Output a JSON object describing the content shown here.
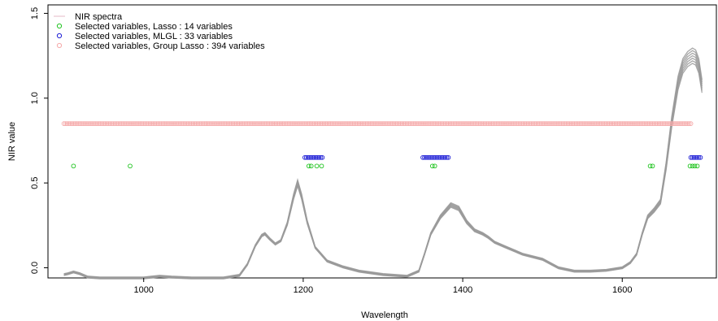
{
  "chart_data": {
    "type": "scatter",
    "title": "",
    "xlabel": "Wavelength",
    "ylabel": "NIR value",
    "xlim": [
      880,
      1718
    ],
    "ylim": [
      -0.06,
      1.55
    ],
    "x_ticks": [
      1000,
      1200,
      1400,
      1600
    ],
    "x_tick_labels": [
      "1000",
      "1200",
      "1400",
      "1600"
    ],
    "y_ticks": [
      0.0,
      0.5,
      1.0,
      1.5
    ],
    "y_tick_labels": [
      "0.0",
      "0.5",
      "1.0",
      "1.5"
    ],
    "grid": false,
    "legend_position": "top-left",
    "legend": [
      {
        "label": "NIR spectra",
        "kind": "line",
        "color": "#e8c4d0"
      },
      {
        "label": "Selected variables, Lasso : 14 variables",
        "kind": "point",
        "color": "#22c422"
      },
      {
        "label": "Selected variables, MLGL : 33 variables",
        "kind": "point",
        "color": "#1f1fd6"
      },
      {
        "label": "Selected variables, Group Lasso : 394 variables",
        "kind": "point",
        "color": "#f5a9a9"
      }
    ],
    "spectra": {
      "name": "NIR spectra",
      "color": "#9a9a9a",
      "x": [
        900,
        905,
        912,
        920,
        930,
        945,
        960,
        980,
        1000,
        1010,
        1020,
        1035,
        1060,
        1100,
        1120,
        1130,
        1140,
        1148,
        1152,
        1158,
        1165,
        1172,
        1180,
        1188,
        1193,
        1198,
        1205,
        1215,
        1230,
        1250,
        1270,
        1300,
        1330,
        1345,
        1352,
        1360,
        1372,
        1385,
        1395,
        1405,
        1415,
        1425,
        1432,
        1440,
        1455,
        1475,
        1500,
        1520,
        1540,
        1560,
        1580,
        1600,
        1610,
        1618,
        1625,
        1632,
        1640,
        1648,
        1655,
        1662,
        1670,
        1676,
        1682,
        1688,
        1692,
        1696,
        1700
      ],
      "y": [
        -0.04,
        -0.035,
        -0.025,
        -0.035,
        -0.055,
        -0.06,
        -0.06,
        -0.06,
        -0.06,
        -0.055,
        -0.05,
        -0.055,
        -0.06,
        -0.06,
        -0.045,
        0.02,
        0.13,
        0.19,
        0.2,
        0.17,
        0.14,
        0.16,
        0.26,
        0.42,
        0.5,
        0.42,
        0.27,
        0.12,
        0.04,
        0.005,
        -0.02,
        -0.04,
        -0.05,
        -0.02,
        0.08,
        0.2,
        0.3,
        0.37,
        0.35,
        0.27,
        0.22,
        0.2,
        0.18,
        0.15,
        0.12,
        0.08,
        0.05,
        0.0,
        -0.02,
        -0.02,
        -0.015,
        0.0,
        0.03,
        0.08,
        0.2,
        0.3,
        0.34,
        0.39,
        0.6,
        0.86,
        1.09,
        1.19,
        1.23,
        1.25,
        1.24,
        1.19,
        1.07
      ]
    },
    "series": [
      {
        "name": "Selected variables, Lasso : 14 variables",
        "color": "#22c422",
        "y_level": 0.6,
        "x": [
          912,
          983,
          1207,
          1210,
          1217,
          1223,
          1362,
          1365,
          1635,
          1638,
          1685,
          1688,
          1691,
          1694
        ]
      },
      {
        "name": "Selected variables, MLGL : 33 variables",
        "color": "#1f1fd6",
        "y_level": 0.65,
        "x_ranges": [
          [
            1202,
            1224
          ],
          [
            1350,
            1382
          ],
          [
            1686,
            1698
          ]
        ]
      },
      {
        "name": "Selected variables, Group Lasso : 394 variables",
        "color": "#f5a9a9",
        "y_level": 0.85,
        "x_ranges": [
          [
            900,
            1686
          ]
        ]
      }
    ]
  }
}
